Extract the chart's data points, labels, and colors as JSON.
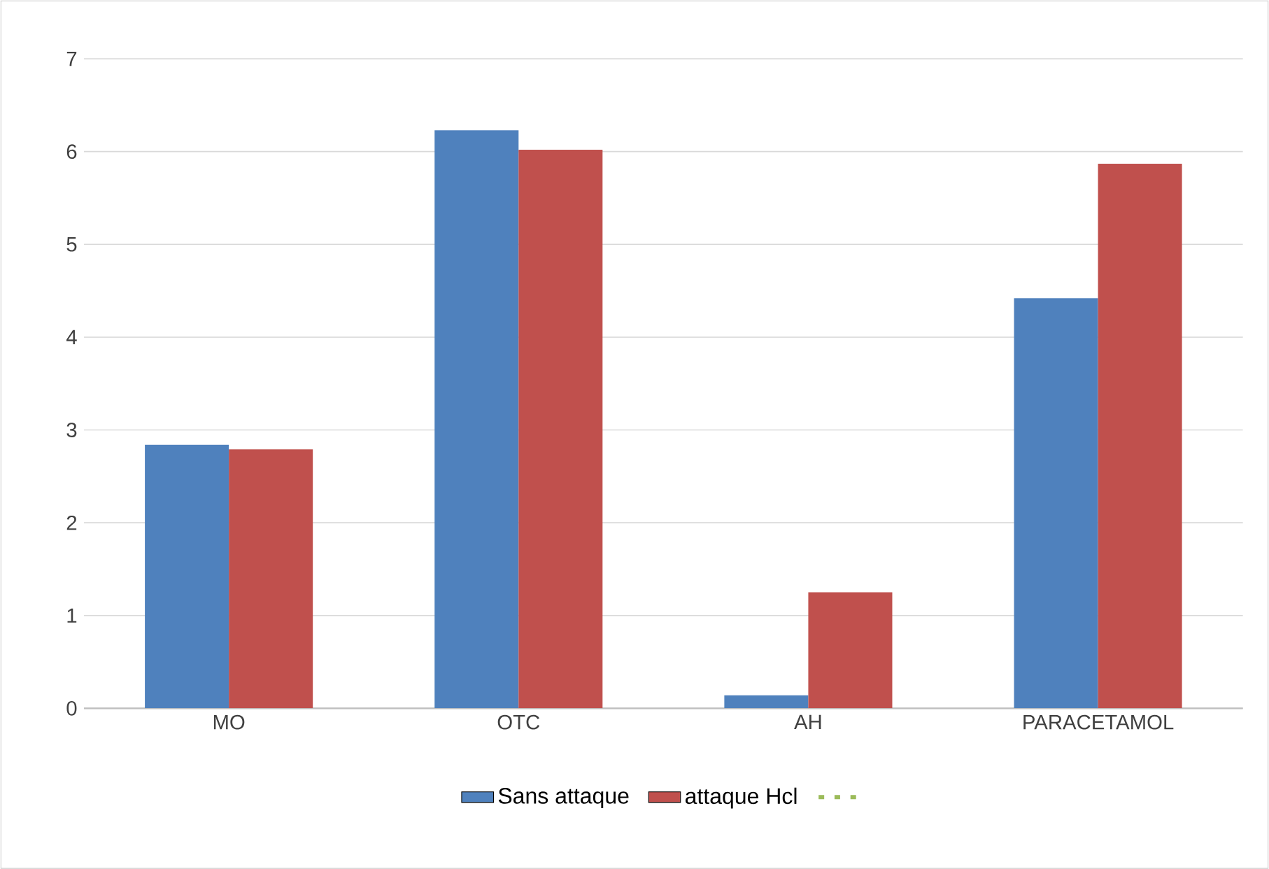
{
  "chart_data": {
    "type": "bar",
    "categories": [
      "MO",
      "OTC",
      "AH",
      "PARACETAMOL"
    ],
    "series": [
      {
        "name": "Sans attaque",
        "color": "#4f81bd",
        "values": [
          2.84,
          6.23,
          0.14,
          4.42
        ]
      },
      {
        "name": "attaque  Hcl",
        "color": "#c0504d",
        "values": [
          2.79,
          6.02,
          1.25,
          5.87
        ]
      },
      {
        "type": "line",
        "color": "#9bbb59",
        "values": [
          null,
          null,
          null,
          null
        ]
      }
    ],
    "ylim": [
      0,
      7
    ],
    "yticks": [
      0,
      1,
      2,
      3,
      4,
      5,
      6,
      7
    ],
    "grid": "y",
    "legend": "bottom"
  }
}
